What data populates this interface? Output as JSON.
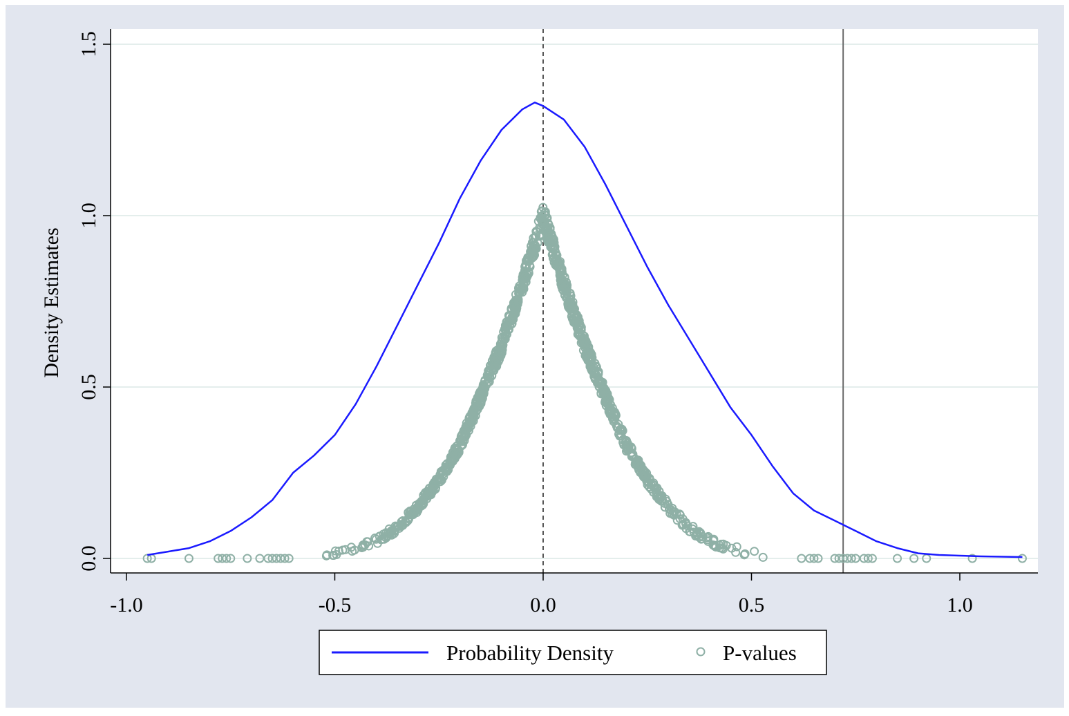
{
  "chart_data": {
    "type": "line",
    "title": "",
    "xlabel": "",
    "ylabel": "Density Estimates",
    "xlim": [
      -1.0,
      1.2
    ],
    "ylim": [
      0.0,
      1.5
    ],
    "xticks": [
      -1.0,
      -0.5,
      0.0,
      0.5,
      1.0
    ],
    "xtick_labels": [
      "-1.0",
      "-0.5",
      "0.0",
      "0.5",
      "1.0"
    ],
    "yticks": [
      0.0,
      0.5,
      1.0,
      1.5
    ],
    "ytick_labels": [
      "0.0",
      "0.5",
      "1.0",
      "1.5"
    ],
    "grid": "horizontal",
    "legend_position": "bottom",
    "reference_lines": [
      {
        "axis": "x",
        "value": 0.0,
        "style": "dashed"
      },
      {
        "axis": "x",
        "value": 0.72,
        "style": "solid"
      }
    ],
    "series": [
      {
        "name": "Probability Density",
        "type": "line",
        "color": "#1a1aff",
        "x": [
          -0.95,
          -0.9,
          -0.85,
          -0.8,
          -0.75,
          -0.7,
          -0.65,
          -0.6,
          -0.55,
          -0.5,
          -0.45,
          -0.4,
          -0.35,
          -0.3,
          -0.25,
          -0.2,
          -0.15,
          -0.1,
          -0.05,
          -0.02,
          0.0,
          0.05,
          0.1,
          0.15,
          0.2,
          0.25,
          0.3,
          0.35,
          0.4,
          0.45,
          0.5,
          0.55,
          0.6,
          0.65,
          0.7,
          0.75,
          0.8,
          0.85,
          0.9,
          0.95,
          1.0,
          1.05,
          1.1,
          1.15
        ],
        "y": [
          0.01,
          0.02,
          0.03,
          0.05,
          0.08,
          0.12,
          0.17,
          0.25,
          0.3,
          0.36,
          0.45,
          0.56,
          0.68,
          0.8,
          0.92,
          1.05,
          1.16,
          1.25,
          1.31,
          1.33,
          1.32,
          1.28,
          1.2,
          1.09,
          0.97,
          0.85,
          0.74,
          0.64,
          0.54,
          0.44,
          0.36,
          0.27,
          0.19,
          0.14,
          0.11,
          0.08,
          0.05,
          0.03,
          0.015,
          0.01,
          0.008,
          0.006,
          0.005,
          0.004
        ]
      },
      {
        "name": "P-values",
        "type": "scatter",
        "color": "#8fb0a6",
        "envelope_x": [
          -0.6,
          -0.55,
          -0.5,
          -0.45,
          -0.4,
          -0.35,
          -0.3,
          -0.25,
          -0.2,
          -0.15,
          -0.1,
          -0.05,
          0.0,
          0.05,
          0.1,
          0.15,
          0.2,
          0.25,
          0.3,
          0.35,
          0.4,
          0.45,
          0.5,
          0.55,
          0.6
        ],
        "envelope_y": [
          0.003,
          0.007,
          0.015,
          0.03,
          0.05,
          0.09,
          0.15,
          0.23,
          0.33,
          0.47,
          0.62,
          0.8,
          1.0,
          0.8,
          0.62,
          0.47,
          0.33,
          0.23,
          0.15,
          0.09,
          0.05,
          0.03,
          0.015,
          0.007,
          0.003
        ],
        "tail_points_x": [
          -0.95,
          -0.94,
          -0.85,
          -0.78,
          -0.77,
          -0.76,
          -0.75,
          -0.71,
          -0.68,
          -0.66,
          -0.65,
          -0.64,
          -0.63,
          -0.62,
          -0.61,
          0.62,
          0.64,
          0.65,
          0.66,
          0.7,
          0.71,
          0.72,
          0.73,
          0.74,
          0.75,
          0.77,
          0.78,
          0.79,
          0.85,
          0.89,
          0.92,
          1.03,
          1.15
        ],
        "tail_points_y": [
          0,
          0,
          0,
          0,
          0,
          0,
          0,
          0,
          0,
          0,
          0,
          0,
          0,
          0,
          0,
          0,
          0,
          0,
          0,
          0,
          0,
          0,
          0,
          0,
          0,
          0,
          0,
          0,
          0,
          0,
          0,
          0,
          0
        ]
      }
    ]
  }
}
